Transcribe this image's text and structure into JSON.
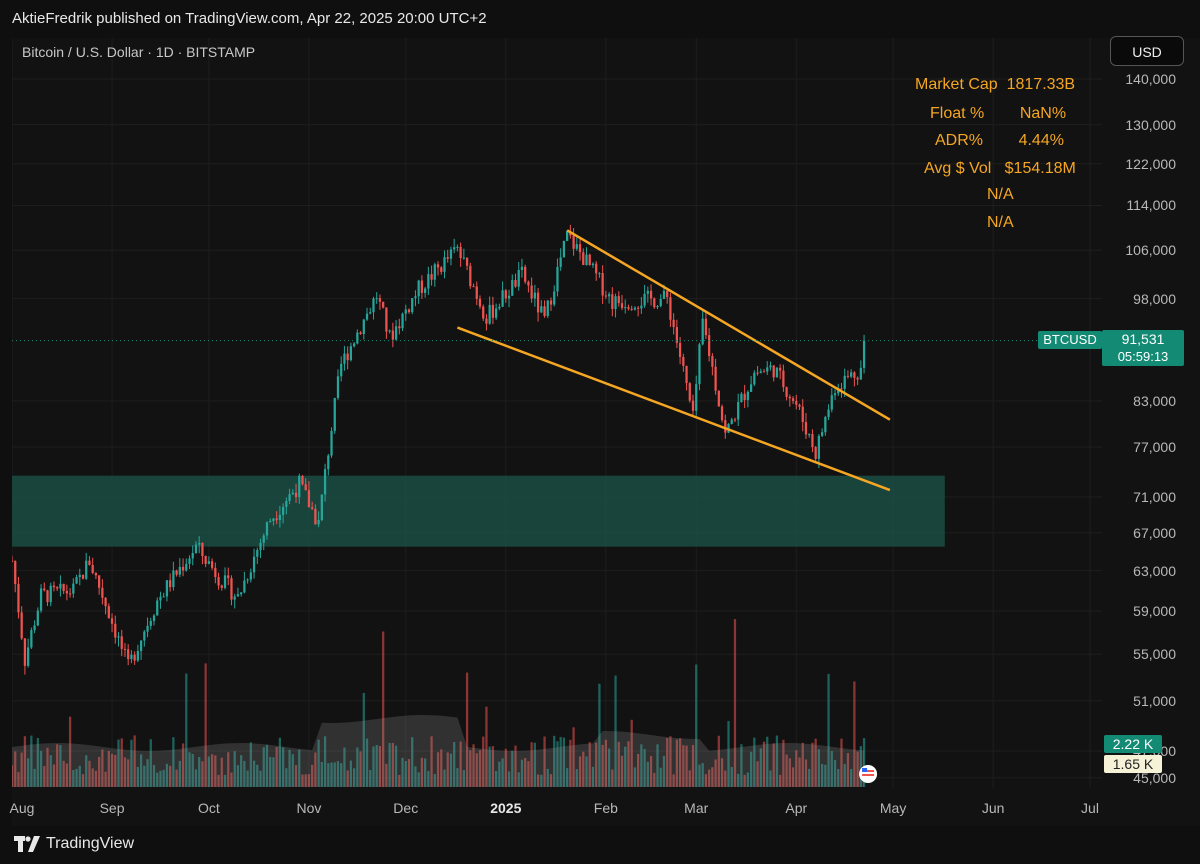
{
  "header": {
    "published_line": "AktieFredrik published on TradingView.com, Apr 22, 2025 20:00 UTC+2"
  },
  "symbol_line": "Bitcoin / U.S. Dollar · 1D · BITSTAMP",
  "currency_button": "USD",
  "stats": [
    {
      "label": "Market Cap",
      "value": "1817.33B"
    },
    {
      "label": "Float %",
      "value": "NaN%"
    },
    {
      "label": "ADR%",
      "value": "4.44%"
    },
    {
      "label": "Avg $ Vol",
      "value": "$154.18M"
    },
    {
      "label": "",
      "value": "N/A"
    },
    {
      "label": "",
      "value": "N/A"
    }
  ],
  "last_price": {
    "symbol": "BTCUSD",
    "price": "91,531",
    "countdown": "05:59:13"
  },
  "volume_labels": {
    "green": "2.22 K",
    "avg": "1.65 K"
  },
  "footer": {
    "brand": "TradingView"
  },
  "colors": {
    "up": "#26a69a",
    "down": "#ef5350",
    "trendline": "#f5a623",
    "zone": "#1b4d44",
    "accent": "#138a74"
  },
  "chart_data": {
    "type": "candlestick",
    "title": "Bitcoin / U.S. Dollar · 1D · BITSTAMP",
    "y_ticks": [
      140000,
      130000,
      122000,
      114000,
      106000,
      98000,
      91531,
      83000,
      77000,
      71000,
      67000,
      63000,
      59000,
      55000,
      51000,
      47000,
      45000
    ],
    "y_tick_labels": [
      "140,000",
      "130,000",
      "122,000",
      "114,000",
      "106,000",
      "98,000",
      "",
      "83,000",
      "77,000",
      "71,000",
      "67,000",
      "63,000",
      "59,000",
      "55,000",
      "51,000",
      "47,000",
      "45,000"
    ],
    "x_ticks": [
      "Aug",
      "Sep",
      "Oct",
      "Nov",
      "Dec",
      "2025",
      "Feb",
      "Mar",
      "Apr",
      "May",
      "Jun",
      "Jul"
    ],
    "x_tick_dates": [
      "2024-08-01",
      "2024-09-01",
      "2024-10-01",
      "2024-11-01",
      "2024-12-01",
      "2025-01-01",
      "2025-02-01",
      "2025-03-01",
      "2025-04-01",
      "2025-05-01",
      "2025-06-01",
      "2025-07-01"
    ],
    "price_path": [
      [
        "2024-08-01",
        64000
      ],
      [
        "2024-08-05",
        54500
      ],
      [
        "2024-08-10",
        60500
      ],
      [
        "2024-08-20",
        61000
      ],
      [
        "2024-08-25",
        64000
      ],
      [
        "2024-09-01",
        58000
      ],
      [
        "2024-09-06",
        53800
      ],
      [
        "2024-09-15",
        60000
      ],
      [
        "2024-09-27",
        65500
      ],
      [
        "2024-10-05",
        62000
      ],
      [
        "2024-10-10",
        60300
      ],
      [
        "2024-10-20",
        68500
      ],
      [
        "2024-10-29",
        72500
      ],
      [
        "2024-11-04",
        68000
      ],
      [
        "2024-11-11",
        88000
      ],
      [
        "2024-11-22",
        98500
      ],
      [
        "2024-11-26",
        91900
      ],
      [
        "2024-12-05",
        99500
      ],
      [
        "2024-12-17",
        106200
      ],
      [
        "2024-12-26",
        95000
      ],
      [
        "2025-01-06",
        101900
      ],
      [
        "2025-01-13",
        94500
      ],
      [
        "2025-01-20",
        108500
      ],
      [
        "2025-01-25",
        104800
      ],
      [
        "2025-02-03",
        97500
      ],
      [
        "2025-02-20",
        98000
      ],
      [
        "2025-02-28",
        80500
      ],
      [
        "2025-03-03",
        94300
      ],
      [
        "2025-03-10",
        78500
      ],
      [
        "2025-03-19",
        86900
      ],
      [
        "2025-03-25",
        87500
      ],
      [
        "2025-04-01",
        82500
      ],
      [
        "2025-04-07",
        76300
      ],
      [
        "2025-04-13",
        85000
      ],
      [
        "2025-04-21",
        87500
      ],
      [
        "2025-04-22",
        91531
      ]
    ],
    "trendlines": [
      {
        "from": [
          "2025-01-20",
          109500
        ],
        "to": [
          "2025-04-30",
          80500
        ]
      },
      {
        "from": [
          "2024-12-17",
          93500
        ],
        "to": [
          "2025-04-30",
          71800
        ]
      }
    ],
    "support_zone": {
      "from": "2024-07-25",
      "to": "2025-05-17",
      "low": 65500,
      "high": 73500
    },
    "last": 91531,
    "volume_label_last": "2.22 K",
    "volume_label_avg": "1.65 K"
  }
}
